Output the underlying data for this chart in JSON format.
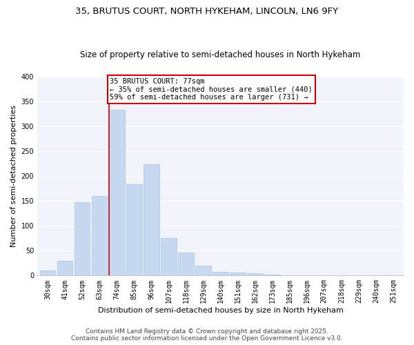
{
  "title_line1": "35, BRUTUS COURT, NORTH HYKEHAM, LINCOLN, LN6 9FY",
  "title_line2": "Size of property relative to semi-detached houses in North Hykeham",
  "xlabel": "Distribution of semi-detached houses by size in North Hykeham",
  "ylabel": "Number of semi-detached properties",
  "bar_labels": [
    "30sqm",
    "41sqm",
    "52sqm",
    "63sqm",
    "74sqm",
    "85sqm",
    "96sqm",
    "107sqm",
    "118sqm",
    "129sqm",
    "140sqm",
    "151sqm",
    "162sqm",
    "173sqm",
    "185sqm",
    "196sqm",
    "207sqm",
    "218sqm",
    "229sqm",
    "240sqm",
    "251sqm"
  ],
  "bar_values": [
    10,
    30,
    148,
    160,
    333,
    184,
    224,
    75,
    46,
    20,
    8,
    6,
    4,
    2,
    0,
    0,
    0,
    0,
    0,
    0,
    0
  ],
  "bar_color": "#c6d9f1",
  "bar_edge_color": "#a8c4e0",
  "red_line_index": 4,
  "annotation_title": "35 BRUTUS COURT: 77sqm",
  "annotation_line2": "← 35% of semi-detached houses are smaller (440)",
  "annotation_line3": "59% of semi-detached houses are larger (731) →",
  "annotation_box_color": "#ffffff",
  "annotation_box_edge": "#cc0000",
  "ylim": [
    0,
    400
  ],
  "yticks": [
    0,
    50,
    100,
    150,
    200,
    250,
    300,
    350,
    400
  ],
  "footer_line1": "Contains HM Land Registry data © Crown copyright and database right 2025.",
  "footer_line2": "Contains public sector information licensed under the Open Government Licence v3.0.",
  "background_color": "#ffffff",
  "plot_bg_color": "#f0f4fa",
  "grid_color": "#ffffff",
  "title_fontsize": 9.5,
  "subtitle_fontsize": 8.5,
  "axis_label_fontsize": 8,
  "tick_fontsize": 7,
  "annotation_fontsize": 7.5,
  "footer_fontsize": 6.5
}
